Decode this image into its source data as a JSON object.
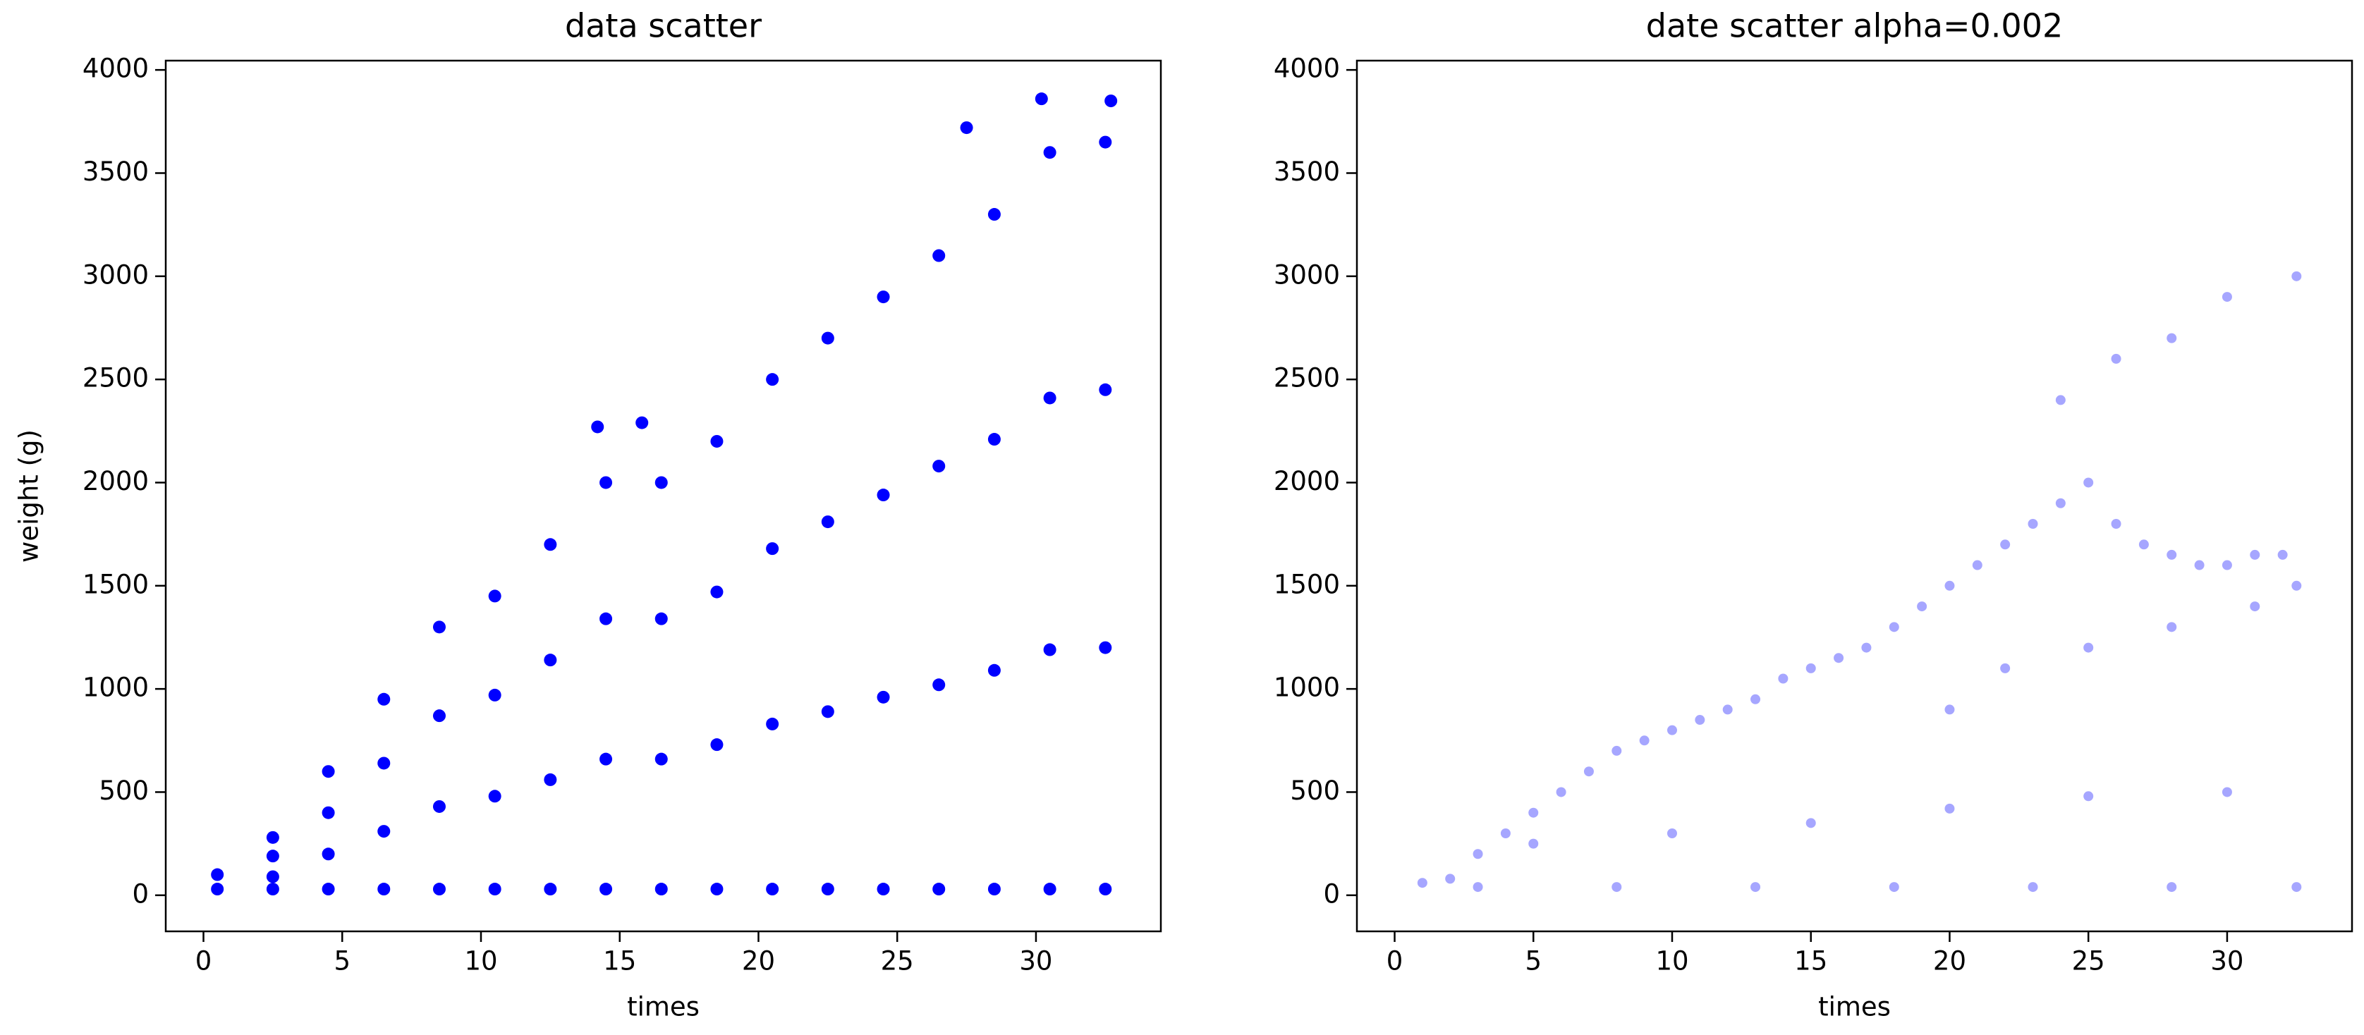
{
  "chart_data": [
    {
      "type": "scatter",
      "title": "data scatter",
      "x_label": "times",
      "y_label": "weight (g)",
      "color": "#0000ff",
      "xlim": [
        -1.36,
        34.5
      ],
      "ylim": [
        -175,
        4045
      ],
      "xticks": [
        0,
        5,
        10,
        15,
        20,
        25,
        30
      ],
      "yticks": [
        0,
        500,
        1000,
        1500,
        2000,
        2500,
        3000,
        3500,
        4000
      ],
      "x": [
        0.5,
        0.5,
        2.5,
        2.5,
        2.5,
        2.5,
        4.5,
        4.5,
        4.5,
        4.5,
        6.5,
        6.5,
        6.5,
        6.5,
        8.5,
        8.5,
        8.5,
        8.5,
        10.5,
        10.5,
        10.5,
        10.5,
        12.5,
        12.5,
        12.5,
        12.5,
        14.5,
        14.5,
        14.5,
        14.5,
        16.5,
        16.5,
        16.5,
        16.5,
        18.5,
        18.5,
        18.5,
        18.5,
        20.5,
        20.5,
        20.5,
        20.5,
        22.5,
        22.5,
        22.5,
        22.5,
        24.5,
        24.5,
        24.5,
        24.5,
        26.5,
        26.5,
        26.5,
        26.5,
        28.5,
        28.5,
        28.5,
        28.5,
        30.5,
        30.5,
        30.5,
        30.5,
        32.5,
        32.5,
        32.5,
        32.5,
        14.2,
        15.8,
        27.5,
        30.2,
        32.7
      ],
      "y": [
        100,
        30,
        280,
        190,
        90,
        30,
        600,
        400,
        200,
        30,
        950,
        640,
        310,
        30,
        1300,
        870,
        430,
        30,
        1450,
        970,
        480,
        30,
        1700,
        1140,
        560,
        30,
        2000,
        1340,
        660,
        30,
        2000,
        1340,
        660,
        30,
        2200,
        1470,
        730,
        30,
        2500,
        1680,
        830,
        30,
        2700,
        1810,
        890,
        30,
        2900,
        1940,
        960,
        30,
        3100,
        2080,
        1020,
        30,
        3300,
        2210,
        1090,
        30,
        3600,
        2410,
        1190,
        30,
        3650,
        2450,
        1200,
        30,
        2270,
        2290,
        3720,
        3860,
        3850
      ]
    },
    {
      "type": "scatter",
      "title": "date scatter alpha=0.002",
      "x_label": "times",
      "color": "#0000ff",
      "xlim": [
        -1.36,
        34.5
      ],
      "ylim": [
        -175,
        4045
      ],
      "xticks": [
        0,
        5,
        10,
        15,
        20,
        25,
        30
      ],
      "yticks": [
        0,
        500,
        1000,
        1500,
        2000,
        2500,
        3000,
        3500,
        4000
      ],
      "x": [
        1,
        2,
        3,
        4,
        5,
        6,
        7,
        8,
        9,
        10,
        11,
        12,
        13,
        14,
        15,
        16,
        17,
        18,
        19,
        20,
        21,
        22,
        23,
        24,
        25,
        26,
        27,
        28,
        29,
        30,
        31,
        32,
        32.5,
        24,
        26,
        28,
        30,
        32.5,
        5,
        10,
        15,
        20,
        25,
        30,
        3,
        8,
        13,
        18,
        23,
        28,
        32.5,
        20,
        22,
        25,
        28,
        31
      ],
      "y": [
        60,
        80,
        200,
        300,
        400,
        500,
        600,
        700,
        750,
        800,
        850,
        900,
        950,
        1050,
        1100,
        1150,
        1200,
        1300,
        1400,
        1500,
        1600,
        1700,
        1800,
        1900,
        2000,
        1800,
        1700,
        1650,
        1600,
        1600,
        1650,
        1650,
        1500,
        2400,
        2600,
        2700,
        2900,
        3000,
        250,
        300,
        350,
        420,
        480,
        500,
        40,
        40,
        40,
        40,
        40,
        40,
        40,
        900,
        1100,
        1200,
        1300,
        1400
      ]
    }
  ]
}
